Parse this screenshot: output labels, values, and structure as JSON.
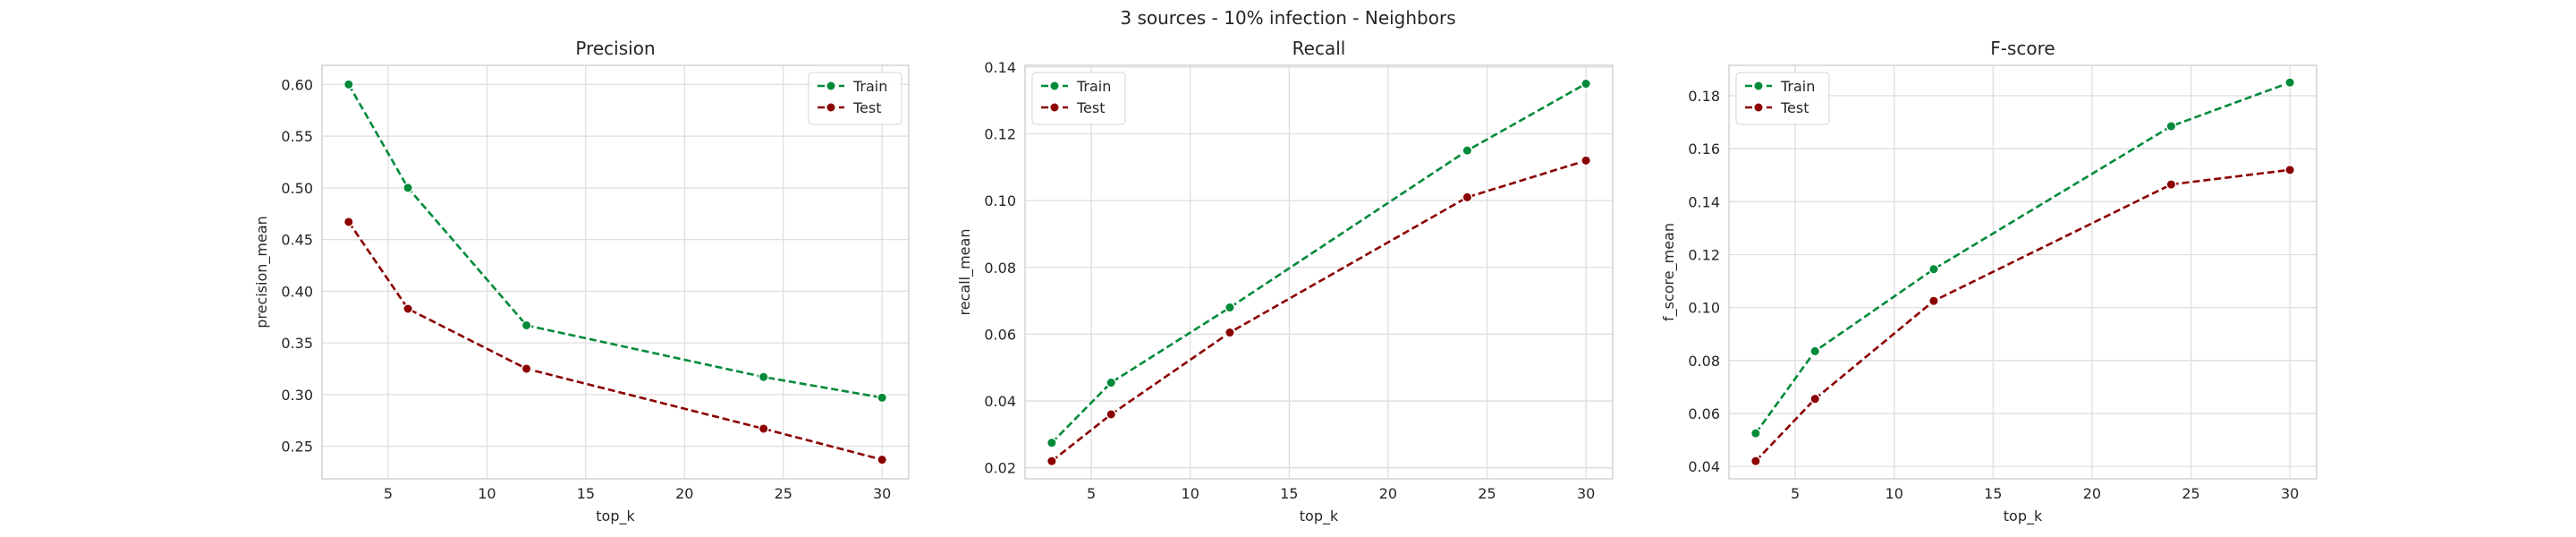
{
  "figure": {
    "suptitle": "3 sources - 10% infection - Neighbors"
  },
  "chart_data": [
    {
      "type": "line",
      "title": "Precision",
      "xlabel": "top_k",
      "ylabel": "precision_mean",
      "x": [
        3,
        6,
        12,
        24,
        30
      ],
      "xlim": [
        1.65,
        31.35
      ],
      "ylim": [
        0.2185,
        0.6185
      ],
      "xticks": [
        5,
        10,
        15,
        20,
        25,
        30
      ],
      "yticks": [
        0.25,
        0.3,
        0.35,
        0.4,
        0.45,
        0.5,
        0.55,
        0.6
      ],
      "ytick_labels": [
        "0.25",
        "0.30",
        "0.35",
        "0.40",
        "0.45",
        "0.50",
        "0.55",
        "0.60"
      ],
      "legend": "top-right",
      "grid": true,
      "series": [
        {
          "name": "Train",
          "color": "#008a3a",
          "values": [
            0.6,
            0.5,
            0.367,
            0.317,
            0.297
          ]
        },
        {
          "name": "Test",
          "color": "#8b0000",
          "values": [
            0.467,
            0.383,
            0.325,
            0.267,
            0.237
          ]
        }
      ]
    },
    {
      "type": "line",
      "title": "Recall",
      "xlabel": "top_k",
      "ylabel": "recall_mean",
      "x": [
        3,
        6,
        12,
        24,
        30
      ],
      "xlim": [
        1.65,
        31.35
      ],
      "ylim": [
        0.0167,
        0.1405
      ],
      "xticks": [
        5,
        10,
        15,
        20,
        25,
        30
      ],
      "yticks": [
        0.02,
        0.04,
        0.06,
        0.08,
        0.1,
        0.12,
        0.14
      ],
      "ytick_labels": [
        "0.02",
        "0.04",
        "0.06",
        "0.08",
        "0.10",
        "0.12",
        "0.14"
      ],
      "legend": "top-left",
      "grid": true,
      "series": [
        {
          "name": "Train",
          "color": "#008a3a",
          "values": [
            0.0275,
            0.0455,
            0.068,
            0.115,
            0.135
          ]
        },
        {
          "name": "Test",
          "color": "#8b0000",
          "values": [
            0.022,
            0.036,
            0.0605,
            0.101,
            0.112
          ]
        }
      ]
    },
    {
      "type": "line",
      "title": "F-score",
      "xlabel": "top_k",
      "ylabel": "f_score_mean",
      "x": [
        3,
        6,
        12,
        24,
        30
      ],
      "xlim": [
        1.65,
        31.35
      ],
      "ylim": [
        0.0353,
        0.1915
      ],
      "xticks": [
        5,
        10,
        15,
        20,
        25,
        30
      ],
      "yticks": [
        0.04,
        0.06,
        0.08,
        0.1,
        0.12,
        0.14,
        0.16,
        0.18
      ],
      "ytick_labels": [
        "0.04",
        "0.06",
        "0.08",
        "0.10",
        "0.12",
        "0.14",
        "0.16",
        "0.18"
      ],
      "legend": "top-left",
      "grid": true,
      "series": [
        {
          "name": "Train",
          "color": "#008a3a",
          "values": [
            0.0525,
            0.0835,
            0.1145,
            0.1685,
            0.185
          ]
        },
        {
          "name": "Test",
          "color": "#8b0000",
          "values": [
            0.042,
            0.0655,
            0.1025,
            0.1465,
            0.152
          ]
        }
      ]
    }
  ]
}
